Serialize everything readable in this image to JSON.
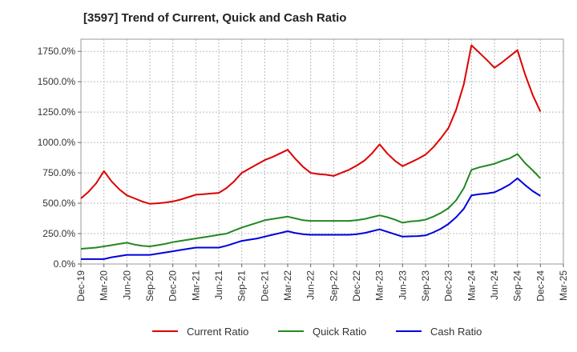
{
  "chart_data": {
    "type": "line",
    "title": "[3597]  Trend of Current, Quick and Cash Ratio",
    "xlabel": "",
    "ylabel": "",
    "ylim": [
      0,
      1850
    ],
    "yticks": [
      0,
      250,
      500,
      750,
      1000,
      1250,
      1500,
      1750
    ],
    "ytick_labels": [
      "0.0%",
      "250.0%",
      "500.0%",
      "750.0%",
      "1000.0%",
      "1250.0%",
      "1500.0%",
      "1750.0%"
    ],
    "xtick_labels": [
      "Dec-19",
      "Mar-20",
      "Jun-20",
      "Sep-20",
      "Dec-20",
      "Mar-21",
      "Jun-21",
      "Sep-21",
      "Dec-21",
      "Mar-22",
      "Jun-22",
      "Sep-22",
      "Dec-22",
      "Mar-23",
      "Jun-23",
      "Sep-23",
      "Dec-23",
      "Mar-24",
      "Jun-24",
      "Sep-24",
      "Dec-24",
      "Mar-25"
    ],
    "x_months": [
      0,
      1,
      2,
      3,
      4,
      5,
      6,
      7,
      8,
      9,
      10,
      11,
      12,
      13,
      14,
      15,
      16,
      17,
      18,
      19,
      20,
      21,
      22,
      23,
      24,
      25,
      26,
      27,
      28,
      29,
      30,
      31,
      32,
      33,
      34,
      35,
      36,
      37,
      38,
      39,
      40,
      41,
      42,
      43,
      44,
      45,
      46,
      47,
      48,
      49,
      50,
      51,
      52,
      53,
      54,
      55,
      56,
      57,
      58,
      59,
      60
    ],
    "series": [
      {
        "name": "Current Ratio",
        "color": "#dd0000",
        "values": [
          540,
          595,
          665,
          765,
          680,
          615,
          565,
          540,
          515,
          495,
          500,
          505,
          515,
          530,
          550,
          570,
          575,
          580,
          585,
          625,
          680,
          750,
          785,
          820,
          855,
          880,
          910,
          940,
          865,
          800,
          750,
          740,
          735,
          725,
          750,
          775,
          810,
          850,
          910,
          985,
          910,
          850,
          805,
          835,
          865,
          900,
          960,
          1035,
          1120,
          1270,
          1480,
          1800,
          1740,
          1680,
          1615,
          1660,
          1710,
          1760,
          1560,
          1390,
          1255
        ]
      },
      {
        "name": "Quick Ratio",
        "color": "#228822",
        "values": [
          125,
          130,
          135,
          145,
          155,
          165,
          175,
          160,
          150,
          145,
          155,
          165,
          180,
          190,
          200,
          210,
          220,
          230,
          240,
          250,
          275,
          300,
          320,
          340,
          360,
          370,
          380,
          390,
          375,
          360,
          355,
          355,
          355,
          355,
          355,
          355,
          360,
          370,
          385,
          400,
          385,
          365,
          340,
          350,
          355,
          365,
          390,
          420,
          460,
          525,
          625,
          775,
          795,
          810,
          825,
          850,
          870,
          905,
          830,
          770,
          705
        ]
      },
      {
        "name": "Cash Ratio",
        "color": "#0000dd",
        "values": [
          40,
          40,
          40,
          40,
          55,
          65,
          75,
          75,
          75,
          75,
          85,
          95,
          105,
          115,
          125,
          135,
          135,
          135,
          135,
          150,
          170,
          190,
          200,
          210,
          225,
          240,
          255,
          270,
          255,
          245,
          240,
          240,
          240,
          240,
          240,
          240,
          245,
          255,
          270,
          285,
          265,
          245,
          225,
          228,
          230,
          235,
          260,
          290,
          330,
          385,
          455,
          565,
          575,
          580,
          590,
          620,
          655,
          705,
          650,
          600,
          560
        ]
      }
    ]
  }
}
